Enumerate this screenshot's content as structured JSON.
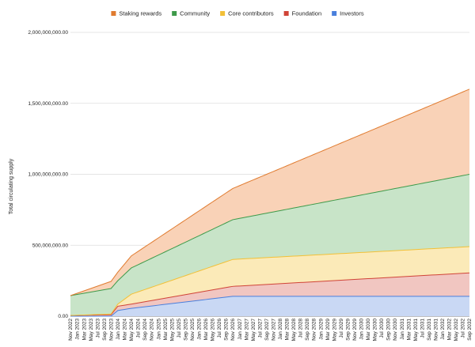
{
  "chart_data": {
    "type": "area",
    "stacked": true,
    "ylabel": "Total circulating supply",
    "xlabel": "",
    "ylim": [
      0,
      2000000000
    ],
    "y_ticks": [
      0,
      500000000,
      1000000000,
      1500000000,
      2000000000
    ],
    "y_tick_labels": [
      "0.00",
      "500,000,000.00",
      "1,000,000,000.00",
      "1,500,000,000.00",
      "2,000,000,000.00"
    ],
    "grid": true,
    "legend_position": "top",
    "x_start_month": "2022-11",
    "x_end_month": "2032-09",
    "x_label_step_months": 2,
    "x_tick_labels": [
      "Nov 2022",
      "Jan 2023",
      "Mar 2023",
      "May 2023",
      "Jul 2023",
      "Sep 2023",
      "Nov 2023",
      "Jan 2024",
      "Mar 2024",
      "May 2024",
      "Jul 2024",
      "Sep 2024",
      "Nov 2024",
      "Jan 2025",
      "Mar 2025",
      "May 2025",
      "Jul 2025",
      "Sep 2025",
      "Nov 2025",
      "Jan 2026",
      "Mar 2026",
      "May 2026",
      "Jul 2026",
      "Sep 2026",
      "Nov 2026",
      "Jan 2027",
      "Mar 2027",
      "May 2027",
      "Jul 2027",
      "Sep 2027",
      "Nov 2027",
      "Jan 2028",
      "Mar 2028",
      "May 2028",
      "Jul 2028",
      "Sep 2028",
      "Nov 2028",
      "Jan 2029",
      "Mar 2029",
      "May 2029",
      "Jul 2029",
      "Sep 2029",
      "Nov 2029",
      "Jan 2030",
      "Mar 2030",
      "May 2030",
      "Jul 2030",
      "Sep 2030",
      "Nov 2030",
      "Jan 2031",
      "Mar 2031",
      "May 2031",
      "Jul 2031",
      "Sep 2031",
      "Nov 2031",
      "Jan 2032",
      "Mar 2032",
      "May 2032",
      "Jul 2032",
      "Sep 2032"
    ],
    "series": [
      {
        "name": "Investors",
        "color": "#4a7fdc",
        "fill": "#c9d8f4",
        "points": [
          [
            "2022-11",
            0
          ],
          [
            "2023-11",
            0
          ],
          [
            "2024-01",
            40000000
          ],
          [
            "2024-05",
            55000000
          ],
          [
            "2026-11",
            140000000
          ],
          [
            "2032-09",
            140000000
          ]
        ]
      },
      {
        "name": "Foundation",
        "color": "#d04437",
        "fill": "#f1c6c1",
        "points": [
          [
            "2022-11",
            5000000
          ],
          [
            "2023-11",
            10000000
          ],
          [
            "2024-01",
            30000000
          ],
          [
            "2024-05",
            30000000
          ],
          [
            "2026-11",
            70000000
          ],
          [
            "2032-09",
            165000000
          ]
        ]
      },
      {
        "name": "Core contributors",
        "color": "#f2c037",
        "fill": "#fbeab8",
        "points": [
          [
            "2022-11",
            0
          ],
          [
            "2023-11",
            5000000
          ],
          [
            "2024-01",
            15000000
          ],
          [
            "2024-05",
            70000000
          ],
          [
            "2026-11",
            190000000
          ],
          [
            "2032-09",
            185000000
          ]
        ]
      },
      {
        "name": "Community",
        "color": "#3e9a4a",
        "fill": "#c8e4c8",
        "points": [
          [
            "2022-11",
            140000000
          ],
          [
            "2023-11",
            180000000
          ],
          [
            "2024-01",
            165000000
          ],
          [
            "2024-05",
            185000000
          ],
          [
            "2026-11",
            280000000
          ],
          [
            "2032-09",
            510000000
          ]
        ]
      },
      {
        "name": "Staking rewards",
        "color": "#e07b2f",
        "fill": "#f9d2b7",
        "points": [
          [
            "2022-11",
            0
          ],
          [
            "2023-11",
            50000000
          ],
          [
            "2024-01",
            60000000
          ],
          [
            "2024-05",
            85000000
          ],
          [
            "2026-11",
            220000000
          ],
          [
            "2032-09",
            600000000
          ]
        ]
      }
    ],
    "legend_order": [
      "Staking rewards",
      "Community",
      "Core contributors",
      "Foundation",
      "Investors"
    ]
  }
}
